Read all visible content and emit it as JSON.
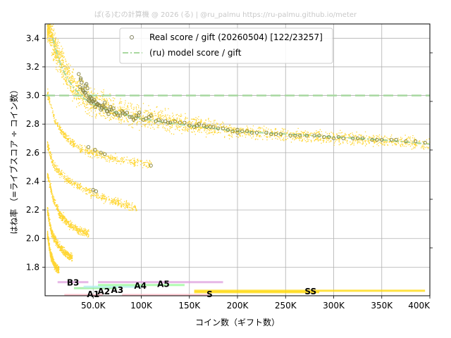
{
  "header_text": "ぱ(る)むの計算機 @ 2026 (る) | @ru_palmu  https://ru-palmu.github.io/meter",
  "chart_data": {
    "type": "scatter",
    "xlabel": "コイン数（ギフト数）",
    "ylabel": "はね率 （=ライブスコア ÷ コイン数）",
    "xlim": [
      0,
      400000
    ],
    "ylim": [
      1.6,
      3.5
    ],
    "x_ticks": [
      {
        "value": 50000,
        "label": "50.0K"
      },
      {
        "value": 100000,
        "label": "100K"
      },
      {
        "value": 150000,
        "label": "150K"
      },
      {
        "value": 200000,
        "label": "200K"
      },
      {
        "value": 250000,
        "label": "250K"
      },
      {
        "value": 300000,
        "label": "300K"
      },
      {
        "value": 350000,
        "label": "350K"
      },
      {
        "value": 400000,
        "label": "400K"
      }
    ],
    "y_ticks": [
      {
        "value": 1.8,
        "label": "1.8"
      },
      {
        "value": 2.0,
        "label": "2.0"
      },
      {
        "value": 2.2,
        "label": "2.2"
      },
      {
        "value": 2.4,
        "label": "2.4"
      },
      {
        "value": 2.6,
        "label": "2.6"
      },
      {
        "value": 2.8,
        "label": "2.8"
      },
      {
        "value": 3.0,
        "label": "3.0"
      },
      {
        "value": 3.2,
        "label": "3.2"
      },
      {
        "value": 3.4,
        "label": "3.4"
      }
    ],
    "grid": true,
    "legend_position": "top-center",
    "legend": [
      {
        "label": "Real score / gift (20260504) [122/23257]",
        "marker": "circle",
        "color": "#808060"
      },
      {
        "label": "(ru) model score / gift",
        "marker": "dashdot-line",
        "color": "#a8d8a0"
      }
    ],
    "colors": {
      "cloud": "#ffcc00",
      "real_points": "#808040",
      "model_line": "#a8d8a0",
      "reference_line": "#a8d8a0"
    },
    "reference_line": {
      "y": 3.0,
      "style": "dashed"
    },
    "model_curve": [
      [
        8000,
        3.4
      ],
      [
        12000,
        3.3
      ],
      [
        16000,
        3.22
      ],
      [
        20000,
        3.16
      ],
      [
        25000,
        3.1
      ],
      [
        30000,
        3.05
      ],
      [
        40000,
        2.98
      ],
      [
        50000,
        2.94
      ],
      [
        60000,
        2.91
      ],
      [
        70000,
        2.89
      ],
      [
        80000,
        2.87
      ],
      [
        100000,
        2.84
      ],
      [
        125000,
        2.81
      ],
      [
        150000,
        2.79
      ],
      [
        175000,
        2.77
      ],
      [
        200000,
        2.75
      ],
      [
        250000,
        2.73
      ],
      [
        300000,
        2.71
      ],
      [
        350000,
        2.69
      ],
      [
        400000,
        2.66
      ]
    ],
    "cloud_trends": [
      {
        "name": "main",
        "points": [
          [
            2000,
            3.5
          ],
          [
            10000,
            3.33
          ],
          [
            20000,
            3.18
          ],
          [
            30000,
            3.06
          ],
          [
            40000,
            2.99
          ],
          [
            50000,
            2.95
          ],
          [
            70000,
            2.9
          ],
          [
            100000,
            2.85
          ],
          [
            150000,
            2.8
          ],
          [
            200000,
            2.75
          ],
          [
            250000,
            2.73
          ],
          [
            300000,
            2.71
          ],
          [
            350000,
            2.69
          ],
          [
            400000,
            2.66
          ]
        ],
        "spread": 0.05
      },
      {
        "name": "branch-1",
        "points": [
          [
            2000,
            3.02
          ],
          [
            10000,
            2.82
          ],
          [
            20000,
            2.72
          ],
          [
            30000,
            2.66
          ],
          [
            40000,
            2.62
          ],
          [
            50000,
            2.6
          ],
          [
            60000,
            2.58
          ],
          [
            80000,
            2.55
          ],
          [
            110000,
            2.52
          ]
        ],
        "spread": 0.02
      },
      {
        "name": "branch-2",
        "points": [
          [
            2000,
            2.66
          ],
          [
            8000,
            2.52
          ],
          [
            15000,
            2.46
          ],
          [
            25000,
            2.4
          ],
          [
            35000,
            2.37
          ],
          [
            45000,
            2.33
          ],
          [
            60000,
            2.29
          ],
          [
            80000,
            2.24
          ],
          [
            95000,
            2.21
          ]
        ],
        "spread": 0.02
      },
      {
        "name": "branch-3",
        "points": [
          [
            2000,
            2.45
          ],
          [
            8000,
            2.28
          ],
          [
            15000,
            2.17
          ],
          [
            25000,
            2.1
          ],
          [
            35000,
            2.06
          ],
          [
            45000,
            2.04
          ]
        ],
        "spread": 0.02
      },
      {
        "name": "branch-4",
        "points": [
          [
            2000,
            2.2
          ],
          [
            6000,
            2.05
          ],
          [
            12000,
            1.97
          ],
          [
            20000,
            1.9
          ],
          [
            28000,
            1.87
          ]
        ],
        "spread": 0.02
      },
      {
        "name": "branch-5",
        "points": [
          [
            2000,
            2.03
          ],
          [
            5000,
            1.9
          ],
          [
            9000,
            1.82
          ],
          [
            14000,
            1.78
          ]
        ],
        "spread": 0.02
      }
    ],
    "real_points": [
      [
        35000,
        3.15
      ],
      [
        37000,
        3.12
      ],
      [
        38000,
        3.09
      ],
      [
        36000,
        3.06
      ],
      [
        39000,
        3.04
      ],
      [
        40000,
        3.03
      ],
      [
        42000,
        3.02
      ],
      [
        44000,
        3.05
      ],
      [
        45000,
        2.97
      ],
      [
        46000,
        2.98
      ],
      [
        48000,
        2.95
      ],
      [
        50000,
        2.96
      ],
      [
        52000,
        2.92
      ],
      [
        55000,
        2.94
      ],
      [
        58000,
        2.9
      ],
      [
        60000,
        2.93
      ],
      [
        63000,
        2.91
      ],
      [
        65000,
        2.89
      ],
      [
        68000,
        2.92
      ],
      [
        72000,
        2.87
      ],
      [
        76000,
        2.86
      ],
      [
        80000,
        2.89
      ],
      [
        85000,
        2.88
      ],
      [
        90000,
        2.85
      ],
      [
        95000,
        2.86
      ],
      [
        98000,
        2.88
      ],
      [
        105000,
        2.84
      ],
      [
        110000,
        2.86
      ],
      [
        118000,
        2.83
      ],
      [
        125000,
        2.82
      ],
      [
        135000,
        2.82
      ],
      [
        145000,
        2.81
      ],
      [
        160000,
        2.8
      ],
      [
        165000,
        2.79
      ],
      [
        172000,
        2.78
      ],
      [
        180000,
        2.77
      ],
      [
        190000,
        2.76
      ],
      [
        200000,
        2.76
      ],
      [
        210000,
        2.75
      ],
      [
        220000,
        2.74
      ],
      [
        240000,
        2.73
      ],
      [
        255000,
        2.72
      ],
      [
        272000,
        2.72
      ],
      [
        290000,
        2.71
      ],
      [
        300000,
        2.7
      ],
      [
        310000,
        2.7
      ],
      [
        330000,
        2.7
      ],
      [
        360000,
        2.69
      ],
      [
        375000,
        2.68
      ],
      [
        43000,
        3.08
      ],
      [
        47000,
        2.99
      ],
      [
        62000,
        2.95
      ],
      [
        74000,
        2.88
      ],
      [
        115000,
        2.82
      ],
      [
        200000,
        2.74
      ],
      [
        45000,
        2.64
      ],
      [
        52000,
        2.62
      ],
      [
        58000,
        2.6
      ],
      [
        62000,
        2.59
      ],
      [
        110000,
        2.51
      ],
      [
        50000,
        2.34
      ],
      [
        53000,
        2.33
      ],
      [
        47000,
        2.99
      ],
      [
        57000,
        2.93
      ],
      [
        66000,
        2.87
      ],
      [
        92000,
        2.83
      ],
      [
        155000,
        2.78
      ],
      [
        230000,
        2.74
      ],
      [
        285000,
        2.72
      ],
      [
        340000,
        2.69
      ],
      [
        37000,
        3.11
      ],
      [
        41000,
        3.02
      ],
      [
        49000,
        2.96
      ],
      [
        54000,
        2.94
      ],
      [
        61000,
        2.92
      ],
      [
        69000,
        2.9
      ],
      [
        78000,
        2.86
      ],
      [
        88000,
        2.85
      ],
      [
        102000,
        2.83
      ],
      [
        130000,
        2.81
      ],
      [
        150000,
        2.79
      ],
      [
        175000,
        2.78
      ],
      [
        195000,
        2.75
      ],
      [
        215000,
        2.74
      ],
      [
        245000,
        2.73
      ],
      [
        265000,
        2.72
      ],
      [
        295000,
        2.71
      ],
      [
        320000,
        2.7
      ],
      [
        350000,
        2.69
      ],
      [
        385000,
        2.68
      ],
      [
        39000,
        3.05
      ],
      [
        43000,
        3.0
      ],
      [
        46000,
        2.96
      ],
      [
        51000,
        2.97
      ],
      [
        56000,
        2.93
      ],
      [
        59000,
        2.91
      ],
      [
        64000,
        2.89
      ],
      [
        71000,
        2.91
      ],
      [
        83000,
        2.87
      ],
      [
        97000,
        2.86
      ],
      [
        108000,
        2.85
      ],
      [
        122000,
        2.82
      ],
      [
        140000,
        2.81
      ],
      [
        158000,
        2.79
      ],
      [
        185000,
        2.77
      ],
      [
        205000,
        2.75
      ],
      [
        235000,
        2.73
      ],
      [
        260000,
        2.72
      ],
      [
        280000,
        2.72
      ],
      [
        305000,
        2.71
      ],
      [
        325000,
        2.7
      ],
      [
        345000,
        2.69
      ],
      [
        365000,
        2.69
      ],
      [
        395000,
        2.67
      ],
      [
        42000,
        3.07
      ],
      [
        48000,
        2.98
      ],
      [
        53000,
        2.95
      ],
      [
        67000,
        2.9
      ],
      [
        81000,
        2.88
      ],
      [
        94000,
        2.84
      ],
      [
        128000,
        2.81
      ],
      [
        168000,
        2.78
      ]
    ],
    "rank_bands": [
      {
        "label": "B3",
        "color": "#dda0dd",
        "bars": [
          {
            "x": [
              13000,
              45000
            ],
            "y": 1.695
          }
        ]
      },
      {
        "label": "A1",
        "color": "#ffb6c1",
        "bars": [
          {
            "x": [
              20000,
              60000
            ],
            "y": 1.605
          },
          {
            "x": [
              80000,
              170000
            ],
            "y": 1.605
          }
        ]
      },
      {
        "label": "A2",
        "color": "#90ee90",
        "bars": [
          {
            "x": [
              30000,
              75000
            ],
            "y": 1.653
          }
        ]
      },
      {
        "label": "A3",
        "color": "#afeeee",
        "bars": [
          {
            "x": [
              40000,
              100000
            ],
            "y": 1.663
          }
        ]
      },
      {
        "label": "A4",
        "color": "#98fb98",
        "bars": [
          {
            "x": [
              55000,
              145000
            ],
            "y": 1.675
          }
        ]
      },
      {
        "label": "A5",
        "color": "#dda0dd",
        "bars": [
          {
            "x": [
              55000,
              185000
            ],
            "y": 1.695
          }
        ]
      },
      {
        "label": "S",
        "color": "#ffd700",
        "bars": [
          {
            "x": [
              155000,
              285000
            ],
            "y": 1.625
          }
        ]
      },
      {
        "label": "SS",
        "color": "#ffd700",
        "bars": [
          {
            "x": [
              155000,
              395000
            ],
            "y": 1.635
          }
        ]
      }
    ],
    "rank_labels": [
      {
        "label": "B3",
        "x": 29000,
        "y": 1.69
      },
      {
        "label": "A1",
        "x": 50000,
        "y": 1.61
      },
      {
        "label": "A2",
        "x": 61000,
        "y": 1.63
      },
      {
        "label": "A3",
        "x": 75000,
        "y": 1.64
      },
      {
        "label": "A4",
        "x": 99000,
        "y": 1.67
      },
      {
        "label": "A5",
        "x": 123000,
        "y": 1.68
      },
      {
        "label": "S",
        "x": 171000,
        "y": 1.61
      },
      {
        "label": "SS",
        "x": 276000,
        "y": 1.63
      }
    ]
  }
}
